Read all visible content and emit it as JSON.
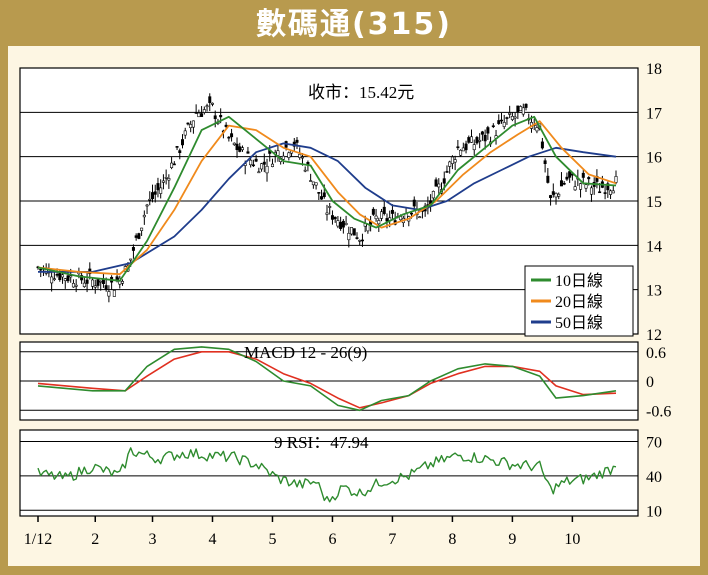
{
  "title": "數碼通(315)",
  "colors": {
    "background": "#b89a4e",
    "panel": "#fdf6e3",
    "candle": "#000000",
    "ma10": "#2e8b2e",
    "ma20": "#f08a1c",
    "ma50": "#1f3d8c",
    "macd_line": "#2e8b2e",
    "macd_signal": "#e03020",
    "rsi": "#2e8b2e"
  },
  "chart_data": [
    {
      "type": "candlestick",
      "annotation": "收市：15.42元",
      "ylim": [
        12,
        18
      ],
      "yticks": [
        "12",
        "13",
        "14",
        "15",
        "16",
        "17",
        "18"
      ],
      "grid": true,
      "legend_position": "bottom-right",
      "legend": [
        "10日線",
        "20日線",
        "50日線"
      ],
      "close_last": 15.42,
      "x_month_labels": [
        "1/12",
        "2",
        "3",
        "4",
        "5",
        "6",
        "7",
        "8",
        "9",
        "10"
      ],
      "close_approx": [
        [
          0,
          13.5
        ],
        [
          10,
          13.3
        ],
        [
          20,
          13.2
        ],
        [
          28,
          13.1
        ],
        [
          33,
          13.5
        ],
        [
          40,
          14.9
        ],
        [
          46,
          15.4
        ],
        [
          52,
          16.2
        ],
        [
          58,
          17.0
        ],
        [
          64,
          17.1
        ],
        [
          70,
          16.4
        ],
        [
          76,
          16.0
        ],
        [
          82,
          15.8
        ],
        [
          88,
          16.1
        ],
        [
          94,
          16.3
        ],
        [
          100,
          15.6
        ],
        [
          106,
          14.8
        ],
        [
          112,
          14.5
        ],
        [
          118,
          14.2
        ],
        [
          124,
          14.6
        ],
        [
          130,
          14.6
        ],
        [
          136,
          14.8
        ],
        [
          142,
          14.7
        ],
        [
          148,
          15.4
        ],
        [
          154,
          16.2
        ],
        [
          160,
          16.3
        ],
        [
          166,
          16.5
        ],
        [
          172,
          16.8
        ],
        [
          178,
          17.0
        ],
        [
          184,
          16.7
        ],
        [
          188,
          15.0
        ],
        [
          194,
          15.5
        ],
        [
          200,
          15.4
        ],
        [
          206,
          15.3
        ],
        [
          212,
          15.42
        ]
      ],
      "ma10_approx": [
        [
          0,
          13.5
        ],
        [
          15,
          13.3
        ],
        [
          30,
          13.2
        ],
        [
          40,
          14.1
        ],
        [
          50,
          15.3
        ],
        [
          60,
          16.6
        ],
        [
          70,
          16.9
        ],
        [
          80,
          16.4
        ],
        [
          90,
          15.9
        ],
        [
          100,
          15.8
        ],
        [
          108,
          15.0
        ],
        [
          116,
          14.6
        ],
        [
          124,
          14.4
        ],
        [
          134,
          14.7
        ],
        [
          144,
          14.9
        ],
        [
          154,
          15.7
        ],
        [
          164,
          16.2
        ],
        [
          174,
          16.7
        ],
        [
          182,
          16.9
        ],
        [
          190,
          16.0
        ],
        [
          200,
          15.4
        ],
        [
          212,
          15.35
        ]
      ],
      "ma20_approx": [
        [
          0,
          13.5
        ],
        [
          15,
          13.4
        ],
        [
          30,
          13.35
        ],
        [
          40,
          13.9
        ],
        [
          50,
          14.8
        ],
        [
          60,
          15.9
        ],
        [
          70,
          16.7
        ],
        [
          80,
          16.6
        ],
        [
          90,
          16.2
        ],
        [
          100,
          16.0
        ],
        [
          110,
          15.2
        ],
        [
          118,
          14.7
        ],
        [
          126,
          14.4
        ],
        [
          136,
          14.6
        ],
        [
          146,
          15.0
        ],
        [
          156,
          15.6
        ],
        [
          166,
          16.1
        ],
        [
          176,
          16.5
        ],
        [
          184,
          16.8
        ],
        [
          192,
          16.2
        ],
        [
          202,
          15.6
        ],
        [
          212,
          15.4
        ]
      ],
      "ma50_approx": [
        [
          0,
          13.4
        ],
        [
          20,
          13.4
        ],
        [
          34,
          13.6
        ],
        [
          50,
          14.2
        ],
        [
          60,
          14.8
        ],
        [
          70,
          15.5
        ],
        [
          80,
          16.1
        ],
        [
          90,
          16.3
        ],
        [
          100,
          16.2
        ],
        [
          110,
          15.9
        ],
        [
          120,
          15.3
        ],
        [
          130,
          14.9
        ],
        [
          140,
          14.8
        ],
        [
          150,
          15.0
        ],
        [
          160,
          15.4
        ],
        [
          170,
          15.7
        ],
        [
          180,
          16.0
        ],
        [
          190,
          16.2
        ],
        [
          200,
          16.1
        ],
        [
          212,
          16.0
        ]
      ]
    },
    {
      "type": "line",
      "title": "MACD 12 - 26(9)",
      "ylim": [
        -0.8,
        0.8
      ],
      "yticks": [
        "0.6",
        "0",
        "-0.6"
      ],
      "grid": true,
      "macd_approx": [
        [
          0,
          -0.1
        ],
        [
          20,
          -0.2
        ],
        [
          32,
          -0.2
        ],
        [
          40,
          0.3
        ],
        [
          50,
          0.65
        ],
        [
          60,
          0.7
        ],
        [
          70,
          0.65
        ],
        [
          80,
          0.4
        ],
        [
          90,
          0.0
        ],
        [
          100,
          -0.1
        ],
        [
          110,
          -0.5
        ],
        [
          118,
          -0.6
        ],
        [
          126,
          -0.4
        ],
        [
          136,
          -0.3
        ],
        [
          144,
          0.0
        ],
        [
          154,
          0.25
        ],
        [
          164,
          0.35
        ],
        [
          174,
          0.3
        ],
        [
          184,
          0.1
        ],
        [
          190,
          -0.35
        ],
        [
          200,
          -0.3
        ],
        [
          212,
          -0.2
        ]
      ],
      "signal_approx": [
        [
          0,
          -0.05
        ],
        [
          20,
          -0.15
        ],
        [
          32,
          -0.2
        ],
        [
          40,
          0.1
        ],
        [
          50,
          0.45
        ],
        [
          60,
          0.6
        ],
        [
          70,
          0.6
        ],
        [
          80,
          0.45
        ],
        [
          90,
          0.15
        ],
        [
          100,
          -0.05
        ],
        [
          110,
          -0.35
        ],
        [
          118,
          -0.55
        ],
        [
          126,
          -0.45
        ],
        [
          136,
          -0.3
        ],
        [
          144,
          -0.05
        ],
        [
          154,
          0.15
        ],
        [
          164,
          0.3
        ],
        [
          174,
          0.3
        ],
        [
          184,
          0.2
        ],
        [
          190,
          -0.1
        ],
        [
          200,
          -0.28
        ],
        [
          212,
          -0.25
        ]
      ]
    },
    {
      "type": "line",
      "title": "9 RSI：47.94",
      "ylim": [
        5,
        80
      ],
      "yticks": [
        "70",
        "40",
        "10"
      ],
      "grid": true,
      "rsi_approx": [
        [
          0,
          42
        ],
        [
          10,
          38
        ],
        [
          20,
          48
        ],
        [
          30,
          40
        ],
        [
          34,
          62
        ],
        [
          44,
          55
        ],
        [
          54,
          60
        ],
        [
          62,
          58
        ],
        [
          72,
          56
        ],
        [
          80,
          50
        ],
        [
          88,
          38
        ],
        [
          96,
          32
        ],
        [
          102,
          35
        ],
        [
          106,
          18
        ],
        [
          112,
          30
        ],
        [
          118,
          25
        ],
        [
          126,
          35
        ],
        [
          136,
          40
        ],
        [
          144,
          50
        ],
        [
          154,
          58
        ],
        [
          164,
          55
        ],
        [
          174,
          50
        ],
        [
          184,
          48
        ],
        [
          188,
          28
        ],
        [
          194,
          35
        ],
        [
          202,
          38
        ],
        [
          212,
          47.94
        ]
      ]
    }
  ]
}
